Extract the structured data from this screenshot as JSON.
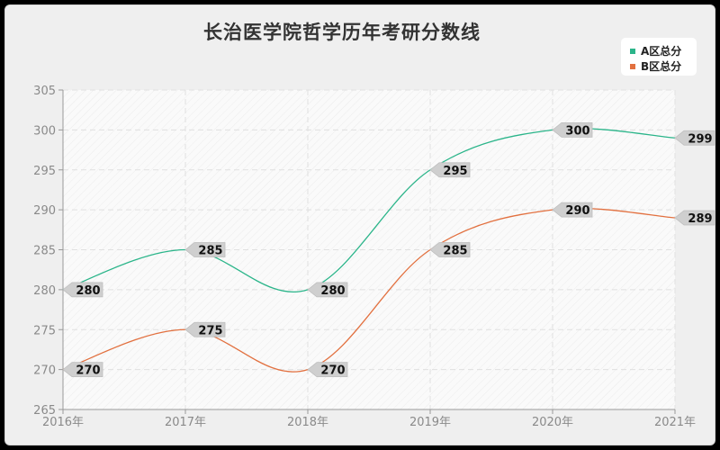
{
  "title": "长治医学院哲学历年考研分数线",
  "legend": [
    {
      "label": "A区总分",
      "color": "#2bb58a"
    },
    {
      "label": "B区总分",
      "color": "#e2703f"
    }
  ],
  "chart_data": {
    "type": "line",
    "title": "长治医学院哲学历年考研分数线",
    "xlabel": "",
    "ylabel": "",
    "categories": [
      "2016年",
      "2017年",
      "2018年",
      "2019年",
      "2020年",
      "2021年"
    ],
    "series": [
      {
        "name": "A区总分",
        "color": "#2bb58a",
        "values": [
          280,
          285,
          280,
          295,
          300,
          299
        ]
      },
      {
        "name": "B区总分",
        "color": "#e2703f",
        "values": [
          270,
          275,
          270,
          285,
          290,
          289
        ]
      }
    ],
    "ylim": [
      265,
      305
    ],
    "yticks": [
      265,
      270,
      275,
      280,
      285,
      290,
      295,
      300,
      305
    ],
    "grid": true,
    "smooth": true,
    "legend_position": "top-right"
  }
}
